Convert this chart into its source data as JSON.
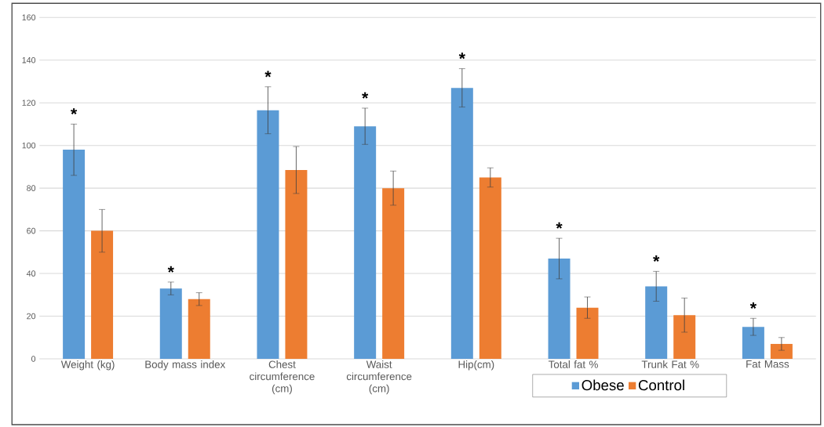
{
  "chart_data": {
    "type": "bar",
    "categories": [
      "Weight (kg)",
      "Body mass index",
      "Chest circumference (cm)",
      "Waist circumference (cm)",
      "Hip(cm)",
      "Total fat %",
      "Trunk Fat %",
      "Fat Mass"
    ],
    "series": [
      {
        "name": "Obese",
        "color": "#5b9bd5",
        "values": [
          98,
          33,
          116.5,
          109,
          127,
          47,
          34,
          15
        ],
        "errors": [
          12,
          3,
          11,
          8.5,
          9,
          9.5,
          7,
          4
        ]
      },
      {
        "name": "Control",
        "color": "#ed7d31",
        "values": [
          60,
          28,
          88.5,
          80,
          85,
          24,
          20.5,
          7
        ],
        "errors": [
          10,
          3,
          11,
          8,
          4.5,
          5,
          8,
          3
        ]
      }
    ],
    "ylim": [
      0,
      160
    ],
    "yticks": [
      0,
      20,
      40,
      60,
      80,
      100,
      120,
      140,
      160
    ],
    "grid": "y",
    "legend": "bottom",
    "annotations": [
      "*",
      "*",
      "*",
      "*",
      "*",
      "*",
      "*",
      "*"
    ]
  }
}
